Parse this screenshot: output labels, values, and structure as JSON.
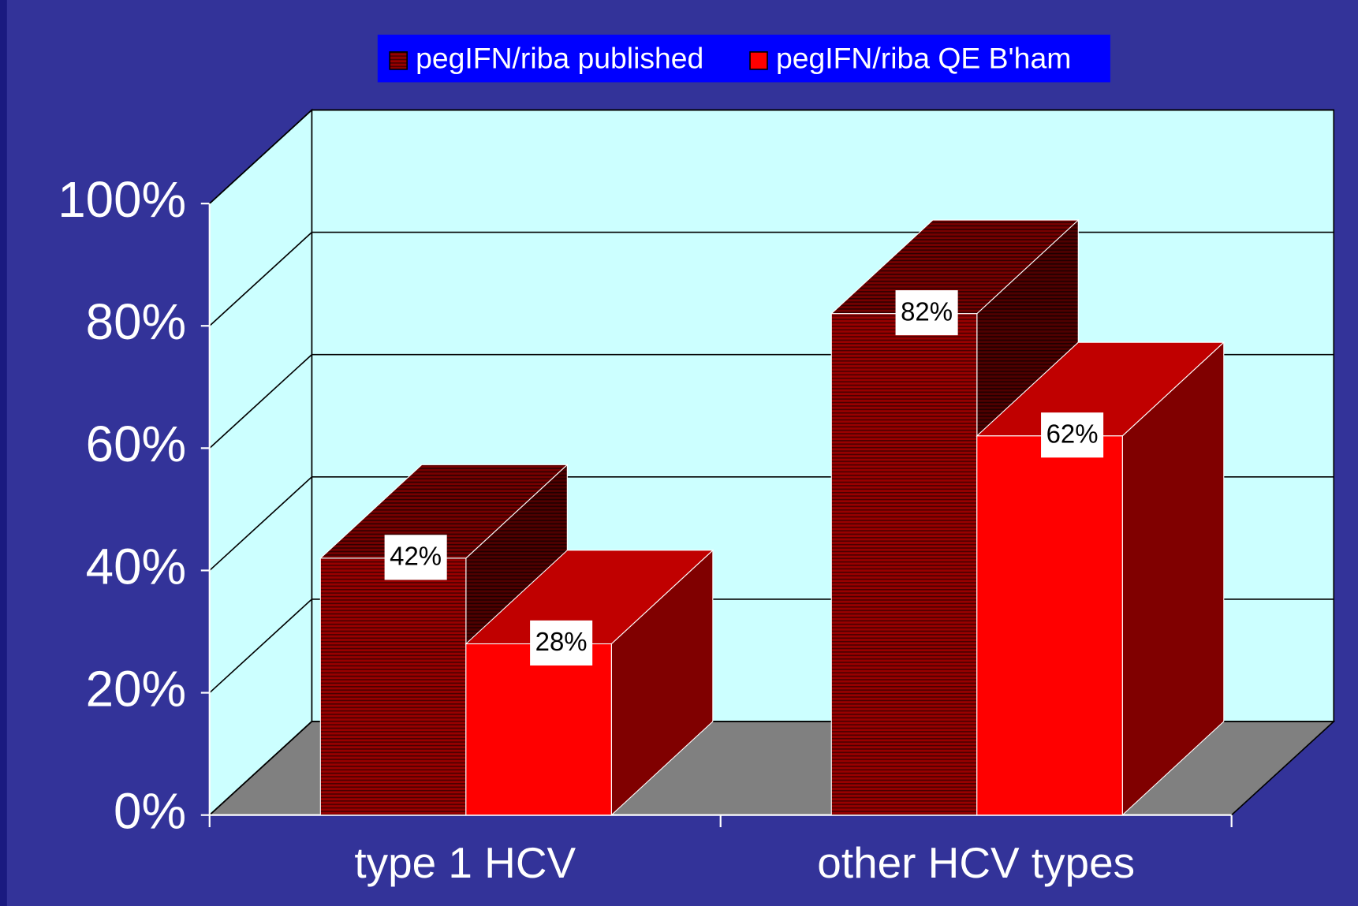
{
  "chart_data": {
    "type": "bar3d",
    "categories": [
      "type 1 HCV",
      "other HCV types"
    ],
    "series": [
      {
        "name": "pegIFN/riba published",
        "color": "#800000",
        "values": [
          42,
          82
        ],
        "value_labels": [
          "42%",
          "82%"
        ]
      },
      {
        "name": "pegIFN/riba QE B'ham",
        "color": "#ff0000",
        "values": [
          28,
          62
        ],
        "value_labels": [
          "28%",
          "62%"
        ]
      }
    ],
    "ylim": [
      0,
      100
    ],
    "yticks": [
      {
        "value": 0,
        "label": "0%"
      },
      {
        "value": 20,
        "label": "20%"
      },
      {
        "value": 40,
        "label": "40%"
      },
      {
        "value": 60,
        "label": "60%"
      },
      {
        "value": 80,
        "label": "80%"
      },
      {
        "value": 100,
        "label": "100%"
      }
    ],
    "grid": true,
    "legend": "top"
  }
}
